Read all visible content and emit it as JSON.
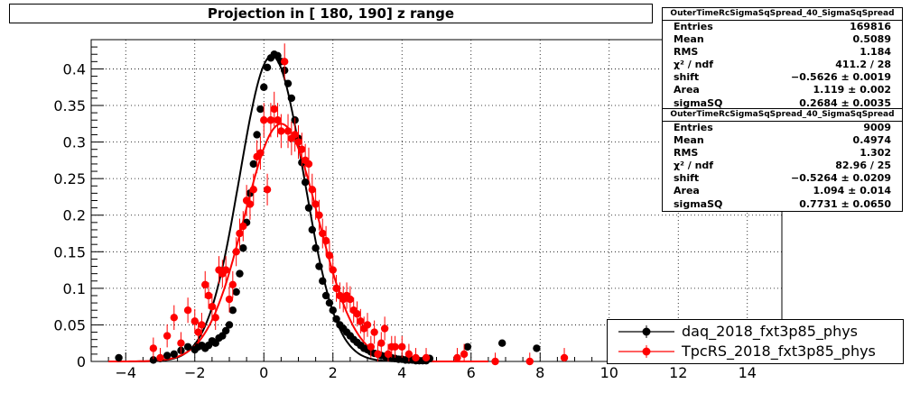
{
  "title": "Projection in [ 180, 190] z range",
  "stats": [
    {
      "name": "OuterTimeRcSigmaSqSpread_40_SigmaSqSpread",
      "rows": [
        {
          "label": "Entries",
          "value": "169816"
        },
        {
          "label": "Mean",
          "value": "0.5089"
        },
        {
          "label": "RMS",
          "value": "1.184"
        },
        {
          "label": "χ² / ndf",
          "value": "411.2 / 28"
        },
        {
          "label": "shift",
          "value": "−0.5626 ± 0.0019"
        },
        {
          "label": "Area",
          "value": "1.119 ± 0.002"
        },
        {
          "label": "sigmaSQ",
          "value": "0.2684 ± 0.0035"
        }
      ]
    },
    {
      "name": "OuterTimeRcSigmaSqSpread_40_SigmaSqSpread",
      "rows": [
        {
          "label": "Entries",
          "value": "9009"
        },
        {
          "label": "Mean",
          "value": "0.4974"
        },
        {
          "label": "RMS",
          "value": "1.302"
        },
        {
          "label": "χ² / ndf",
          "value": "82.96 / 25"
        },
        {
          "label": "shift",
          "value": "−0.5264 ± 0.0209"
        },
        {
          "label": "Area",
          "value": "1.094 ± 0.014"
        },
        {
          "label": "sigmaSQ",
          "value": "0.7731 ± 0.0650"
        }
      ]
    }
  ],
  "legend": [
    {
      "label": "daq_2018_fxt3p85_phys",
      "color": "#000000"
    },
    {
      "label": "TpcRS_2018_fxt3p85_phys",
      "color": "#ff0000"
    }
  ],
  "chart_data": {
    "type": "scatter",
    "title": "Projection in [ 180, 190] z range",
    "xlabel": "",
    "ylabel": "",
    "xlim": [
      -5,
      15
    ],
    "ylim": [
      0,
      0.44
    ],
    "x_ticks": [
      -4,
      -2,
      0,
      2,
      4,
      6,
      8,
      10,
      12,
      14
    ],
    "x_tick_labels": [
      "−4",
      "−2",
      "0",
      "2",
      "4",
      "6",
      "8",
      "10",
      "12",
      "14"
    ],
    "y_ticks": [
      0,
      0.05,
      0.1,
      0.15,
      0.2,
      0.25,
      0.3,
      0.35,
      0.4
    ],
    "y_tick_labels": [
      "0",
      "0.05",
      "0.1",
      "0.15",
      "0.2",
      "0.25",
      "0.3",
      "0.35",
      "0.4"
    ],
    "grid": true,
    "legend_position": "bottom-right",
    "series": [
      {
        "name": "daq_2018_fxt3p85_phys",
        "color": "#000000",
        "fit": {
          "center": 0.23,
          "sigma": 0.93,
          "amplitude": 0.418
        },
        "points": [
          [
            -4.2,
            0.005
          ],
          [
            -3.2,
            0.002
          ],
          [
            -3.0,
            0.004
          ],
          [
            -2.8,
            0.008
          ],
          [
            -2.6,
            0.01
          ],
          [
            -2.4,
            0.015
          ],
          [
            -2.2,
            0.02
          ],
          [
            -2.0,
            0.016
          ],
          [
            -1.9,
            0.02
          ],
          [
            -1.8,
            0.022
          ],
          [
            -1.7,
            0.018
          ],
          [
            -1.6,
            0.022
          ],
          [
            -1.5,
            0.028
          ],
          [
            -1.4,
            0.025
          ],
          [
            -1.3,
            0.032
          ],
          [
            -1.2,
            0.035
          ],
          [
            -1.1,
            0.042
          ],
          [
            -1.0,
            0.05
          ],
          [
            -0.9,
            0.07
          ],
          [
            -0.8,
            0.095
          ],
          [
            -0.7,
            0.12
          ],
          [
            -0.6,
            0.155
          ],
          [
            -0.5,
            0.19
          ],
          [
            -0.4,
            0.23
          ],
          [
            -0.3,
            0.27
          ],
          [
            -0.2,
            0.31
          ],
          [
            -0.1,
            0.345
          ],
          [
            0.0,
            0.375
          ],
          [
            0.1,
            0.402
          ],
          [
            0.2,
            0.415
          ],
          [
            0.3,
            0.42
          ],
          [
            0.4,
            0.418
          ],
          [
            0.5,
            0.41
          ],
          [
            0.6,
            0.398
          ],
          [
            0.7,
            0.38
          ],
          [
            0.8,
            0.36
          ],
          [
            0.9,
            0.33
          ],
          [
            1.0,
            0.305
          ],
          [
            1.1,
            0.272
          ],
          [
            1.2,
            0.245
          ],
          [
            1.3,
            0.21
          ],
          [
            1.4,
            0.18
          ],
          [
            1.5,
            0.155
          ],
          [
            1.6,
            0.13
          ],
          [
            1.7,
            0.11
          ],
          [
            1.8,
            0.09
          ],
          [
            1.9,
            0.08
          ],
          [
            2.0,
            0.07
          ],
          [
            2.1,
            0.058
          ],
          [
            2.2,
            0.05
          ],
          [
            2.3,
            0.045
          ],
          [
            2.4,
            0.04
          ],
          [
            2.5,
            0.035
          ],
          [
            2.6,
            0.03
          ],
          [
            2.7,
            0.026
          ],
          [
            2.8,
            0.022
          ],
          [
            2.9,
            0.018
          ],
          [
            3.0,
            0.016
          ],
          [
            3.1,
            0.013
          ],
          [
            3.2,
            0.011
          ],
          [
            3.3,
            0.01
          ],
          [
            3.4,
            0.008
          ],
          [
            3.5,
            0.007
          ],
          [
            3.6,
            0.006
          ],
          [
            3.7,
            0.005
          ],
          [
            3.8,
            0.004
          ],
          [
            3.9,
            0.003
          ],
          [
            4.0,
            0.003
          ],
          [
            4.1,
            0.002
          ],
          [
            4.2,
            0.002
          ],
          [
            4.3,
            0.002
          ],
          [
            4.4,
            0.001
          ],
          [
            4.5,
            0.001
          ],
          [
            4.6,
            0.001
          ],
          [
            4.7,
            0.001
          ],
          [
            4.8,
            0.004
          ],
          [
            5.9,
            0.02
          ],
          [
            6.9,
            0.025
          ],
          [
            7.9,
            0.018
          ]
        ]
      },
      {
        "name": "TpcRS_2018_fxt3p85_phys",
        "color": "#ff0000",
        "fit": {
          "center": 0.5,
          "sigma": 1.07,
          "amplitude": 0.325
        },
        "points": [
          [
            -3.2,
            0.018
          ],
          [
            -3.0,
            0.005
          ],
          [
            -2.8,
            0.035
          ],
          [
            -2.6,
            0.06
          ],
          [
            -2.4,
            0.025
          ],
          [
            -2.2,
            0.07
          ],
          [
            -2.0,
            0.055
          ],
          [
            -1.9,
            0.04
          ],
          [
            -1.8,
            0.05
          ],
          [
            -1.7,
            0.105
          ],
          [
            -1.6,
            0.09
          ],
          [
            -1.5,
            0.075
          ],
          [
            -1.4,
            0.06
          ],
          [
            -1.3,
            0.125
          ],
          [
            -1.2,
            0.12
          ],
          [
            -1.1,
            0.125
          ],
          [
            -1.0,
            0.085
          ],
          [
            -0.9,
            0.105
          ],
          [
            -0.8,
            0.15
          ],
          [
            -0.7,
            0.175
          ],
          [
            -0.6,
            0.185
          ],
          [
            -0.5,
            0.22
          ],
          [
            -0.4,
            0.215
          ],
          [
            -0.3,
            0.235
          ],
          [
            -0.2,
            0.28
          ],
          [
            -0.1,
            0.285
          ],
          [
            0.0,
            0.33
          ],
          [
            0.1,
            0.235
          ],
          [
            0.2,
            0.33
          ],
          [
            0.3,
            0.345
          ],
          [
            0.4,
            0.33
          ],
          [
            0.5,
            0.315
          ],
          [
            0.6,
            0.41
          ],
          [
            0.7,
            0.315
          ],
          [
            0.8,
            0.305
          ],
          [
            0.9,
            0.31
          ],
          [
            1.0,
            0.3
          ],
          [
            1.1,
            0.29
          ],
          [
            1.2,
            0.275
          ],
          [
            1.3,
            0.27
          ],
          [
            1.4,
            0.235
          ],
          [
            1.5,
            0.215
          ],
          [
            1.6,
            0.2
          ],
          [
            1.7,
            0.175
          ],
          [
            1.8,
            0.165
          ],
          [
            1.9,
            0.145
          ],
          [
            2.0,
            0.125
          ],
          [
            2.1,
            0.1
          ],
          [
            2.2,
            0.09
          ],
          [
            2.3,
            0.085
          ],
          [
            2.4,
            0.09
          ],
          [
            2.5,
            0.085
          ],
          [
            2.6,
            0.07
          ],
          [
            2.7,
            0.065
          ],
          [
            2.8,
            0.055
          ],
          [
            2.9,
            0.045
          ],
          [
            3.0,
            0.05
          ],
          [
            3.1,
            0.02
          ],
          [
            3.2,
            0.04
          ],
          [
            3.3,
            0.01
          ],
          [
            3.4,
            0.025
          ],
          [
            3.5,
            0.045
          ],
          [
            3.6,
            0.01
          ],
          [
            3.7,
            0.02
          ],
          [
            3.8,
            0.02
          ],
          [
            4.0,
            0.02
          ],
          [
            4.2,
            0.01
          ],
          [
            4.4,
            0.005
          ],
          [
            4.7,
            0.005
          ],
          [
            5.6,
            0.005
          ],
          [
            5.8,
            0.01
          ],
          [
            6.7,
            0.0
          ],
          [
            7.7,
            0.0
          ],
          [
            8.7,
            0.005
          ]
        ]
      }
    ]
  }
}
